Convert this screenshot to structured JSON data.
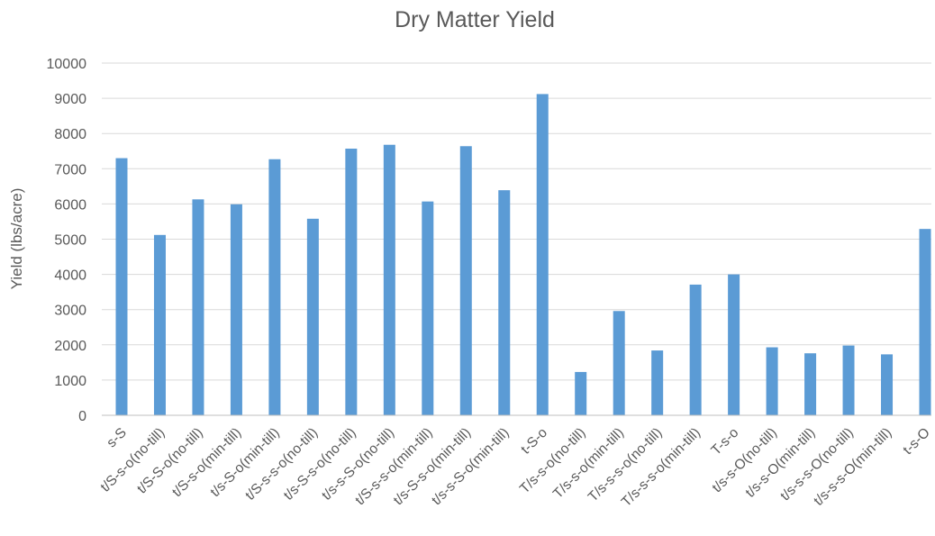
{
  "chart_data": {
    "type": "bar",
    "title": "Dry Matter Yield",
    "xlabel": "",
    "ylabel": "Yield (lbs/acre)",
    "ylim": [
      0,
      10000
    ],
    "yticks": [
      0,
      1000,
      2000,
      3000,
      4000,
      5000,
      6000,
      7000,
      8000,
      9000,
      10000
    ],
    "grid": true,
    "legend": "none",
    "bar_color": "#5B9BD5",
    "categories": [
      "s-S",
      "t/S-s-o(no-till)",
      "t/S-S-o(no-till)",
      "t/S-s-o(min-till)",
      "t/s-S-o(min-till)",
      "t/S-s-s-o(no-till)",
      "t/s-S-s-o(no-till)",
      "t/s-s-S-o(no-till)",
      "t/S-s-s-o(min-till)",
      "t/s-S-s-o(min-till)",
      "t/s-s-S-o(min-till)",
      "t-S-o",
      "T/s-s-o(no-till)",
      "T/s-s-o(min-till)",
      "T/s-s-s-o(no-till)",
      "T/s-s-s-o(min-till)",
      "T-s-o",
      "t/s-s-O(no-till)",
      "t/s-s-O(min-till)",
      "t/s-s-s-O(no-till)",
      "t/s-s-s-O(min-till)",
      "t-s-O"
    ],
    "values": [
      7300,
      5120,
      6130,
      5990,
      7270,
      5580,
      7570,
      7680,
      6070,
      7640,
      6390,
      9120,
      1230,
      2960,
      1840,
      3710,
      4000,
      1930,
      1760,
      1980,
      1730,
      5290
    ]
  }
}
